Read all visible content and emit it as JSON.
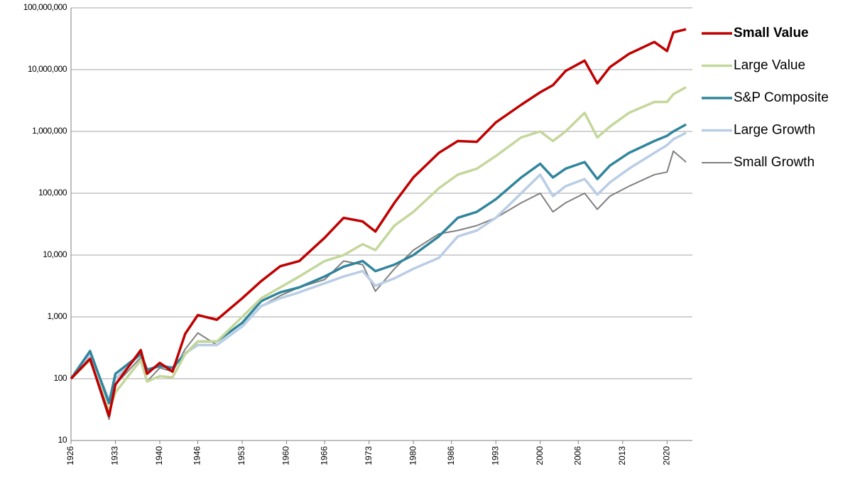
{
  "chart_data": {
    "type": "line",
    "log_scale_y": true,
    "grid": true,
    "legend": "right",
    "x": [
      1926,
      1929,
      1932,
      1933,
      1937,
      1938,
      1940,
      1942,
      1944,
      1946,
      1949,
      1953,
      1956,
      1959,
      1962,
      1966,
      1969,
      1972,
      1974,
      1977,
      1980,
      1984,
      1987,
      1990,
      1993,
      1997,
      2000,
      2002,
      2004,
      2007,
      2009,
      2011,
      2014,
      2018,
      2020,
      2021,
      2023
    ],
    "series": [
      {
        "name": "Small Value",
        "color": "#c00000",
        "values": [
          100,
          210,
          25,
          80,
          290,
          120,
          180,
          130,
          530,
          1070,
          900,
          2000,
          3800,
          6600,
          8000,
          19000,
          40000,
          35000,
          24000,
          70000,
          180000,
          450000,
          700000,
          680000,
          1400000,
          2700000,
          4300000,
          5600000,
          9500000,
          14000000,
          6000000,
          11000000,
          18000000,
          28000000,
          20000000,
          40000000,
          45000000
        ]
      },
      {
        "name": "Large Value",
        "color": "#c4d79b",
        "values": [
          100,
          200,
          30,
          60,
          200,
          90,
          110,
          105,
          250,
          400,
          400,
          1000,
          2000,
          3000,
          4500,
          8000,
          10000,
          15000,
          12000,
          30000,
          50000,
          120000,
          200000,
          250000,
          400000,
          800000,
          1000000,
          700000,
          1000000,
          2000000,
          800000,
          1200000,
          2000000,
          3000000,
          3000000,
          4000000,
          5200000
        ]
      },
      {
        "name": "S&P Composite",
        "color": "#31859c",
        "values": [
          100,
          280,
          40,
          120,
          250,
          140,
          160,
          150,
          250,
          400,
          400,
          800,
          1800,
          2500,
          3000,
          4500,
          6500,
          8000,
          5500,
          7000,
          10000,
          20000,
          40000,
          50000,
          80000,
          180000,
          300000,
          180000,
          250000,
          320000,
          170000,
          280000,
          450000,
          700000,
          850000,
          1000000,
          1300000
        ]
      },
      {
        "name": "Large Growth",
        "color": "#b9cde5",
        "values": [
          100,
          250,
          45,
          100,
          250,
          130,
          170,
          150,
          260,
          350,
          350,
          700,
          1500,
          2000,
          2500,
          3500,
          4500,
          5500,
          3200,
          4200,
          6000,
          9000,
          20000,
          25000,
          40000,
          100000,
          200000,
          90000,
          130000,
          170000,
          95000,
          150000,
          250000,
          450000,
          600000,
          750000,
          950000
        ]
      },
      {
        "name": "Small Growth",
        "color": "#808080",
        "values": [
          100,
          200,
          22,
          80,
          220,
          90,
          150,
          130,
          300,
          550,
          350,
          700,
          1500,
          2200,
          3000,
          4000,
          8000,
          7000,
          2600,
          6000,
          12000,
          22000,
          25000,
          30000,
          40000,
          70000,
          100000,
          50000,
          70000,
          100000,
          55000,
          90000,
          130000,
          200000,
          220000,
          480000,
          320000
        ]
      }
    ],
    "xlim": [
      1926,
      2024
    ],
    "xticks": [
      1926,
      1933,
      1940,
      1946,
      1953,
      1960,
      1966,
      1973,
      1980,
      1986,
      1993,
      2000,
      2006,
      2013,
      2020
    ],
    "ylim": [
      10,
      100000000
    ],
    "yticks": [
      {
        "value": 10,
        "label": "10"
      },
      {
        "value": 100,
        "label": "100"
      },
      {
        "value": 1000,
        "label": "1,000"
      },
      {
        "value": 10000,
        "label": "10,000"
      },
      {
        "value": 100000,
        "label": "100,000"
      },
      {
        "value": 1000000,
        "label": "1,000,000"
      },
      {
        "value": 10000000,
        "label": "10,000,000"
      },
      {
        "value": 100000000,
        "label": "100,000,000"
      }
    ]
  }
}
